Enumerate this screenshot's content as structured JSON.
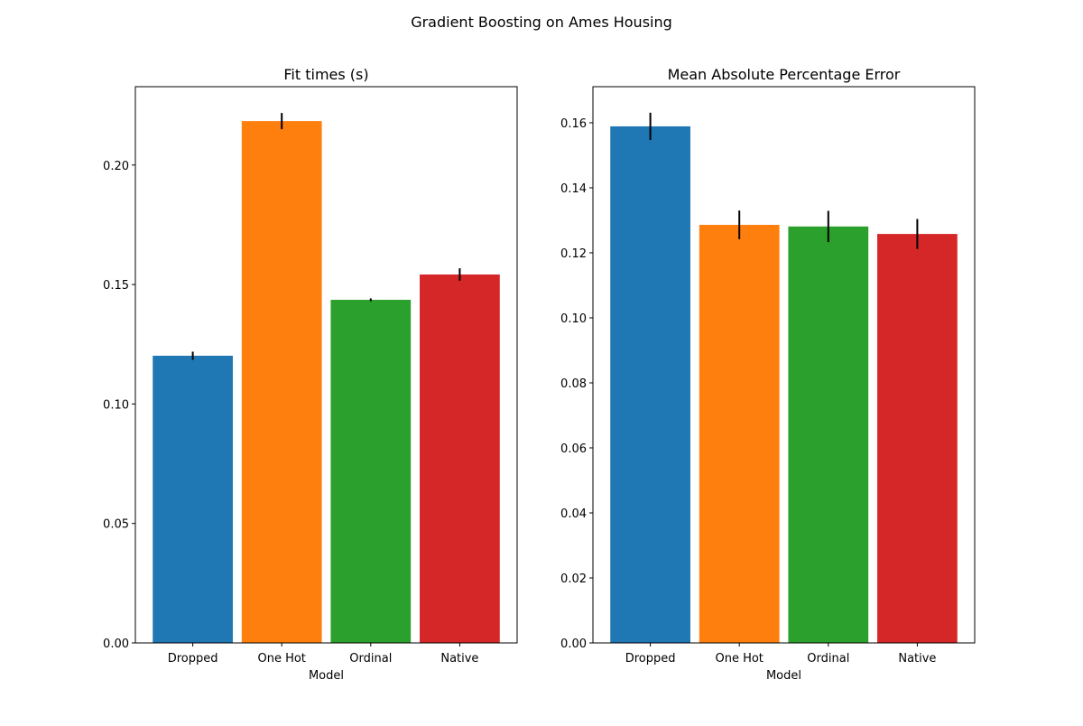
{
  "suptitle": "Gradient Boosting on Ames Housing",
  "chart_data": [
    {
      "type": "bar",
      "title": "Fit times (s)",
      "xlabel": "Model",
      "ylabel": "",
      "categories": [
        "Dropped",
        "One Hot",
        "Ordinal",
        "Native"
      ],
      "values": [
        0.1202,
        0.2184,
        0.1436,
        0.1542
      ],
      "errors": [
        0.0017,
        0.0034,
        0.0006,
        0.0026
      ],
      "colors": [
        "#1f77b4",
        "#ff7f0e",
        "#2ca02c",
        "#d62728"
      ],
      "ylim": [
        0,
        0.2328
      ],
      "yticks": [
        0.0,
        0.05,
        0.1,
        0.15,
        0.2
      ],
      "ytick_labels": [
        "0.00",
        "0.05",
        "0.10",
        "0.15",
        "0.20"
      ],
      "grid": false
    },
    {
      "type": "bar",
      "title": "Mean Absolute Percentage Error",
      "xlabel": "Model",
      "ylabel": "",
      "categories": [
        "Dropped",
        "One Hot",
        "Ordinal",
        "Native"
      ],
      "values": [
        0.1589,
        0.1286,
        0.1281,
        0.1258
      ],
      "errors": [
        0.0042,
        0.0044,
        0.0048,
        0.0046
      ],
      "colors": [
        "#1f77b4",
        "#ff7f0e",
        "#2ca02c",
        "#d62728"
      ],
      "ylim": [
        0,
        0.1711
      ],
      "yticks": [
        0.0,
        0.02,
        0.04,
        0.06,
        0.08,
        0.1,
        0.12,
        0.14,
        0.16
      ],
      "ytick_labels": [
        "0.00",
        "0.02",
        "0.04",
        "0.06",
        "0.08",
        "0.10",
        "0.12",
        "0.14",
        "0.16"
      ],
      "grid": false
    }
  ]
}
